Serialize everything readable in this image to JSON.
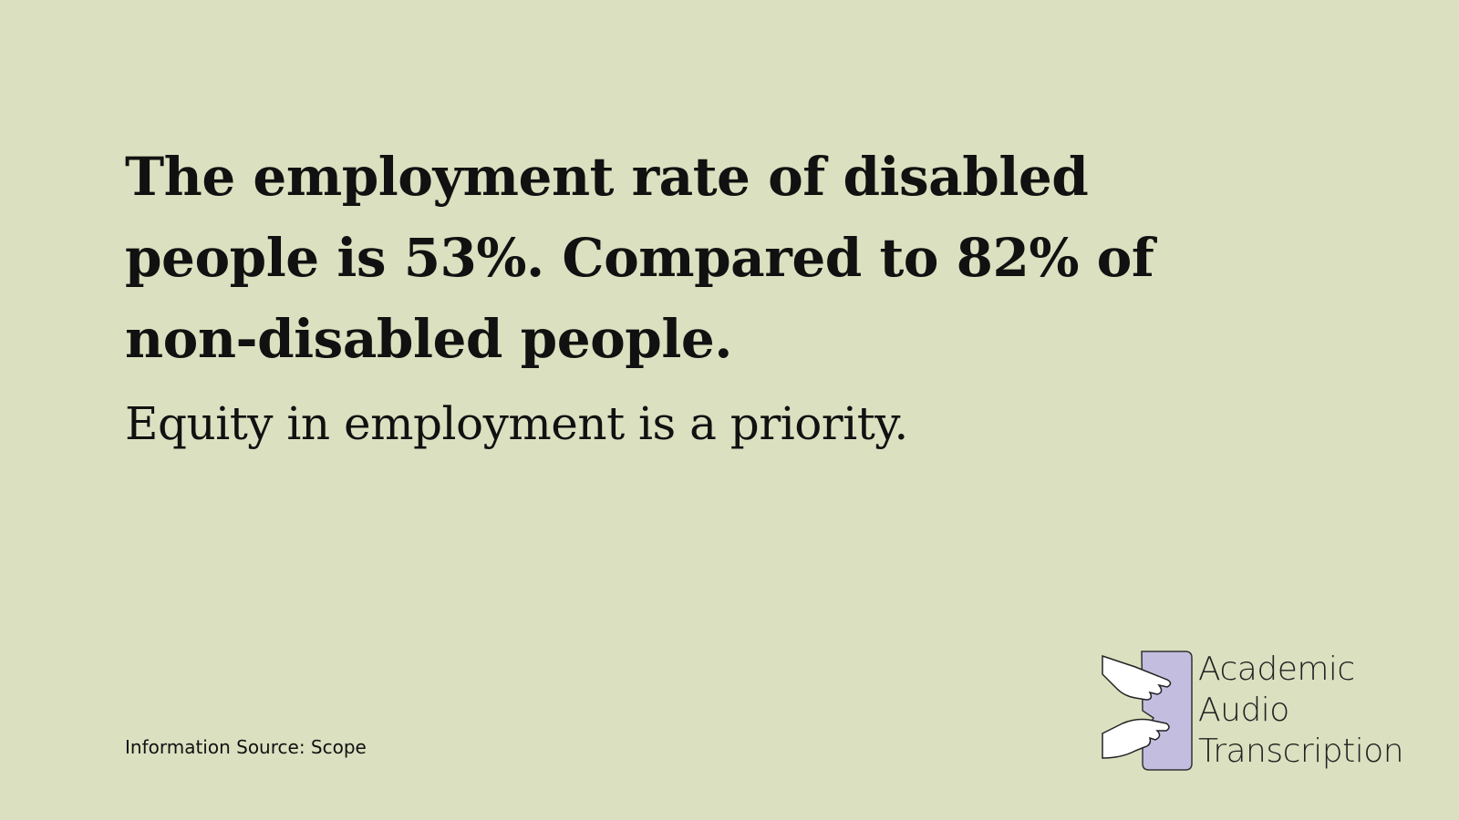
{
  "heading": "The employment rate of disabled people is 53%. Compared to 82% of non-disabled people.",
  "subheading": "Equity in employment is a priority.",
  "source": "Information Source: Scope",
  "logo": {
    "lines": [
      "Academic",
      "Audio",
      "Transcription"
    ]
  }
}
